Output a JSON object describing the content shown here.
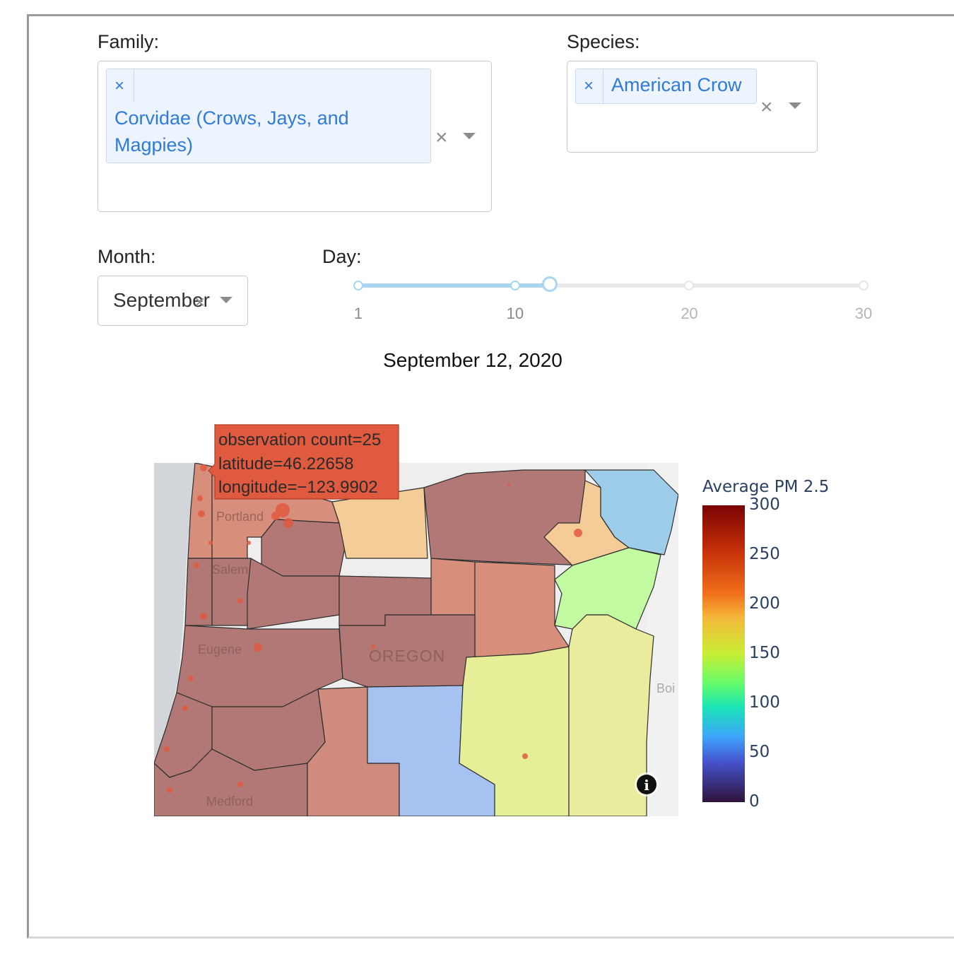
{
  "filters": {
    "family_label": "Family:",
    "family_tag_text": "Corvidae (Crows, Jays, and Magpies)",
    "species_label": "Species:",
    "species_tag_text": "American Crow",
    "remove_glyph": "×",
    "clear_glyph": "×",
    "month_label": "Month:",
    "month_value": "September",
    "day_label": "Day:",
    "day_ticks": [
      "1",
      "10",
      "20",
      "30"
    ],
    "day_min": 1,
    "day_max": 30,
    "day_value": 12
  },
  "date_title": "September 12, 2020",
  "map": {
    "city_labels": [
      "Portland",
      "Salem",
      "Eugene",
      "Medford",
      "OREGON",
      "Boi"
    ],
    "hover": {
      "line1": "observation count=25",
      "line2": "latitude=46.22658",
      "line3": "longitude=−123.9902"
    },
    "info_glyph": "i"
  },
  "colorbar": {
    "title": "Average PM 2.5",
    "ticks": [
      "300",
      "250",
      "200",
      "150",
      "100",
      "50",
      "0"
    ],
    "min": 0,
    "max": 300
  },
  "colors": {
    "tag_bg": "#edf4fd",
    "tag_text": "#2f7bd7",
    "slider_active": "#a7d5f2",
    "hover_bg": "#e05a3f"
  }
}
